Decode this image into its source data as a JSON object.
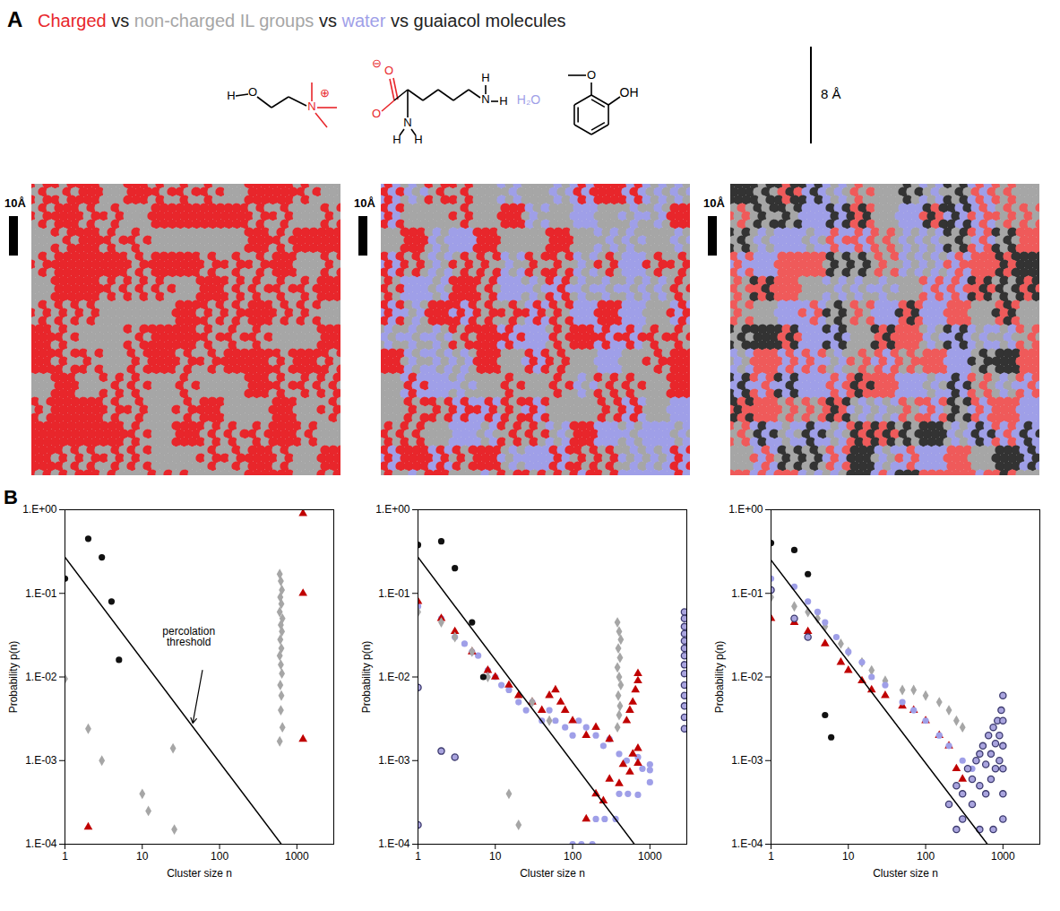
{
  "header": {
    "letter": "A",
    "title_parts": [
      {
        "text": "Charged",
        "color": "#e8262b"
      },
      {
        "text": " vs ",
        "color": "#222222"
      },
      {
        "text": "non-charged IL groups",
        "color": "#a6a6a6"
      },
      {
        "text": " vs ",
        "color": "#222222"
      },
      {
        "text": "water",
        "color": "#9f9fe8"
      },
      {
        "text": " vs guaiacol molecules",
        "color": "#222222"
      }
    ]
  },
  "structures": [
    {
      "labels": [
        "H",
        "O",
        "N",
        "⊕"
      ],
      "colors": [
        "#000000",
        "#000000",
        "#e8262b",
        "#e8262b"
      ]
    },
    {
      "labels": [
        "O",
        "⊖",
        "O",
        "N",
        "H",
        "H",
        "N",
        "H",
        "H"
      ],
      "colors": [
        "#e8262b",
        "#e8262b",
        "#e8262b",
        "#000000",
        "#000000",
        "#000000",
        "#000000",
        "#000000",
        "#000000"
      ]
    },
    {
      "labels": [
        "H₂O"
      ],
      "colors": [
        "#9f9fe8"
      ]
    },
    {
      "labels": [
        "O",
        "OH"
      ],
      "colors": [
        "#000000",
        "#000000"
      ]
    }
  ],
  "scale_label": "8 Å",
  "snapshots": [
    {
      "scale_bar": "10Å",
      "colors": [
        "#e8262b",
        "#a6a6a6"
      ]
    },
    {
      "scale_bar": "10Å",
      "colors": [
        "#e8262b",
        "#a6a6a6",
        "#9f9fe8"
      ]
    },
    {
      "scale_bar": "10Å",
      "colors": [
        "#ef5a5a",
        "#a6a6a6",
        "#9f9fe8",
        "#333333"
      ]
    }
  ],
  "panel_b": {
    "letter": "B"
  },
  "chart_data": [
    {
      "type": "scatter",
      "log": true,
      "grid": false,
      "xlabel": "Cluster size n",
      "ylabel": "Probability p(n)",
      "xlim": [
        1,
        3000
      ],
      "xticks": [
        1,
        10,
        100,
        1000
      ],
      "ylim": [
        0.0001,
        1
      ],
      "yticks": [
        {
          "value": 1,
          "label": "1.E+00"
        },
        {
          "value": 0.1,
          "label": "1.E-01"
        },
        {
          "value": 0.01,
          "label": "1.E-02"
        },
        {
          "value": 0.001,
          "label": "1.E-03"
        },
        {
          "value": 0.0001,
          "label": "1.E-04"
        }
      ],
      "series": [
        {
          "type": "scatter",
          "marker": "diamond",
          "color": "#a6a6a6",
          "x": [
            1,
            2,
            3,
            10,
            12,
            25,
            26,
            600,
            620,
            640,
            610,
            630,
            600,
            650,
            620,
            640,
            610,
            630,
            600,
            620,
            640,
            610,
            630,
            620,
            650,
            600
          ],
          "y": [
            0.0095,
            0.0024,
            0.001,
            0.0004,
            0.00025,
            0.0014,
            0.00015,
            0.17,
            0.14,
            0.11,
            0.09,
            0.075,
            0.06,
            0.05,
            0.042,
            0.035,
            0.028,
            0.022,
            0.018,
            0.014,
            0.011,
            0.008,
            0.006,
            0.004,
            0.0025,
            0.0017
          ]
        },
        {
          "type": "scatter",
          "marker": "triangle",
          "color": "#c00000",
          "x": [
            2,
            1200,
            1200,
            1200
          ],
          "y": [
            0.00016,
            0.9,
            0.1,
            0.0018
          ]
        },
        {
          "type": "scatter",
          "marker": "circle",
          "color": "#111111",
          "x": [
            1,
            2,
            3,
            4,
            5
          ],
          "y": [
            0.15,
            0.45,
            0.27,
            0.08,
            0.016
          ]
        },
        {
          "type": "line",
          "line_style": "solid",
          "color": "#000000",
          "x": [
            1,
            630
          ],
          "y": [
            0.27,
            0.0001
          ]
        }
      ],
      "annotations": [
        {
          "text": "percolation threshold",
          "x": 40,
          "y": 0.03,
          "arrow_from": [
            60,
            0.012
          ],
          "arrow_to": [
            45,
            0.0028
          ]
        }
      ]
    },
    {
      "type": "scatter",
      "log": true,
      "grid": false,
      "xlabel": "Cluster size n",
      "ylabel": "Probability p(n)",
      "xlim": [
        1,
        3000
      ],
      "xticks": [
        1,
        10,
        100,
        1000
      ],
      "ylim": [
        0.0001,
        1
      ],
      "yticks": [
        {
          "value": 1,
          "label": "1.E+00"
        },
        {
          "value": 0.1,
          "label": "1.E-01"
        },
        {
          "value": 0.01,
          "label": "1.E-02"
        },
        {
          "value": 0.001,
          "label": "1.E-03"
        },
        {
          "value": 0.0001,
          "label": "1.E-04"
        }
      ],
      "series": [
        {
          "type": "scatter",
          "marker": "circle",
          "color": "#9f9fe8",
          "x": [
            1,
            2,
            3,
            4,
            5,
            6,
            8,
            10,
            12,
            15,
            20,
            25,
            30,
            40,
            50,
            60,
            80,
            100,
            120,
            150,
            200,
            250,
            300,
            400,
            500,
            700,
            1000,
            100,
            200,
            400,
            800,
            130,
            260,
            520,
            1000,
            180,
            360,
            700,
            1000
          ],
          "y": [
            0.07,
            0.05,
            0.03,
            0.025,
            0.02,
            0.018,
            0.012,
            0.01,
            0.008,
            0.007,
            0.005,
            0.004,
            0.005,
            0.003,
            0.004,
            0.003,
            0.0025,
            0.002,
            0.003,
            0.0025,
            0.002,
            0.0015,
            0.0018,
            0.0012,
            0.001,
            0.0011,
            0.0009,
            0.0001,
            0.0002,
            0.0004,
            0.0008,
            0.0001,
            0.0002,
            0.0004,
            0.00077,
            0.0001,
            0.0002,
            0.00039,
            0.00055
          ]
        },
        {
          "type": "scatter",
          "marker": "triangle",
          "color": "#c00000",
          "x": [
            1,
            2,
            3,
            5,
            8,
            10,
            15,
            20,
            30,
            40,
            50,
            60,
            70,
            80,
            100,
            150,
            200,
            300,
            150,
            250,
            400,
            550,
            700,
            200,
            300,
            450,
            600,
            700,
            500,
            550,
            600,
            650,
            700,
            700
          ],
          "y": [
            0.08,
            0.05,
            0.035,
            0.02,
            0.012,
            0.01,
            0.008,
            0.006,
            0.005,
            0.004,
            0.006,
            0.007,
            0.005,
            0.004,
            0.003,
            0.002,
            0.0025,
            0.0018,
            0.0002,
            0.00033,
            0.00053,
            0.00073,
            0.00093,
            0.0004,
            0.0006,
            0.0009,
            0.0012,
            0.0014,
            0.003,
            0.004,
            0.005,
            0.007,
            0.009,
            0.011
          ]
        },
        {
          "type": "scatter",
          "marker": "diamond",
          "color": "#a6a6a6",
          "x": [
            1,
            2,
            3,
            5,
            8,
            15,
            20,
            30,
            50,
            380,
            400,
            420,
            390,
            410,
            380,
            400,
            420,
            390,
            410,
            400,
            380
          ],
          "y": [
            0.06,
            0.045,
            0.03,
            0.02,
            0.01,
            0.0004,
            0.00017,
            0.005,
            0.003,
            0.045,
            0.035,
            0.028,
            0.022,
            0.017,
            0.013,
            0.01,
            0.008,
            0.006,
            0.0045,
            0.0035,
            0.0025
          ]
        },
        {
          "type": "scatter",
          "marker": "circle-outlined",
          "color": "#3c3a6e",
          "x": [
            1,
            2,
            3,
            1,
            2800,
            2800,
            2800,
            2800,
            2800,
            2800,
            2800,
            2800,
            2800,
            2800,
            2800,
            2800,
            2800,
            2800
          ],
          "y": [
            0.0075,
            0.0013,
            0.0011,
            0.00017,
            0.06,
            0.05,
            0.04,
            0.033,
            0.027,
            0.022,
            0.018,
            0.014,
            0.011,
            0.008,
            0.006,
            0.0045,
            0.0033,
            0.0024
          ]
        },
        {
          "type": "scatter",
          "marker": "circle",
          "color": "#111111",
          "x": [
            1,
            2,
            3,
            5,
            7
          ],
          "y": [
            0.38,
            0.42,
            0.2,
            0.045,
            0.01
          ]
        },
        {
          "type": "line",
          "line_style": "solid",
          "color": "#000000",
          "x": [
            1,
            630
          ],
          "y": [
            0.27,
            0.0001
          ]
        }
      ]
    },
    {
      "type": "scatter",
      "log": true,
      "grid": false,
      "xlabel": "Cluster size n",
      "ylabel": "Probability p(n)",
      "xlim": [
        1,
        3000
      ],
      "xticks": [
        1,
        10,
        100,
        1000
      ],
      "ylim": [
        0.0001,
        1
      ],
      "yticks": [
        {
          "value": 1,
          "label": "1.E+00"
        },
        {
          "value": 0.1,
          "label": "1.E-01"
        },
        {
          "value": 0.01,
          "label": "1.E-02"
        },
        {
          "value": 0.001,
          "label": "1.E-03"
        },
        {
          "value": 0.0001,
          "label": "1.E-04"
        }
      ],
      "series": [
        {
          "type": "scatter",
          "marker": "diamond",
          "color": "#a6a6a6",
          "x": [
            1,
            2,
            3,
            4,
            5,
            8,
            10,
            15,
            20,
            30,
            50,
            70,
            100,
            150,
            200,
            250,
            300
          ],
          "y": [
            0.09,
            0.07,
            0.06,
            0.05,
            0.04,
            0.025,
            0.02,
            0.015,
            0.012,
            0.009,
            0.007,
            0.007,
            0.006,
            0.005,
            0.004,
            0.003,
            0.0025
          ]
        },
        {
          "type": "scatter",
          "marker": "triangle",
          "color": "#c00000",
          "x": [
            1,
            2,
            3,
            5,
            8,
            10,
            15,
            20,
            30,
            50,
            70,
            100,
            150,
            200,
            250,
            300
          ],
          "y": [
            0.05,
            0.045,
            0.035,
            0.025,
            0.015,
            0.012,
            0.009,
            0.007,
            0.006,
            0.0045,
            0.004,
            0.003,
            0.002,
            0.0015,
            0.0008,
            0.0006
          ]
        },
        {
          "type": "scatter",
          "marker": "circle",
          "color": "#9f9fe8",
          "x": [
            1,
            2,
            3,
            4,
            5,
            7,
            10,
            15,
            20,
            30,
            50,
            70,
            100,
            150,
            200,
            300,
            400
          ],
          "y": [
            0.15,
            0.12,
            0.08,
            0.06,
            0.045,
            0.03,
            0.02,
            0.015,
            0.01,
            0.008,
            0.005,
            0.004,
            0.003,
            0.002,
            0.0015,
            0.001,
            0.0008
          ]
        },
        {
          "type": "scatter",
          "marker": "circle-outlined",
          "color": "#3c3a6e",
          "x": [
            1,
            2,
            3,
            200,
            250,
            300,
            300,
            350,
            400,
            400,
            450,
            500,
            500,
            550,
            600,
            600,
            650,
            700,
            700,
            750,
            800,
            800,
            850,
            900,
            900,
            950,
            1000,
            1000,
            1000,
            1000,
            1000,
            1000,
            250,
            500,
            750
          ],
          "y": [
            0.11,
            0.05,
            0.03,
            0.0003,
            0.0005,
            0.0004,
            0.0002,
            0.0008,
            0.0006,
            0.0003,
            0.001,
            0.0012,
            0.0005,
            0.0015,
            0.0009,
            0.0004,
            0.002,
            0.0012,
            0.0006,
            0.0025,
            0.0016,
            0.0008,
            0.003,
            0.002,
            0.001,
            0.004,
            0.006,
            0.003,
            0.0015,
            0.0008,
            0.0004,
            0.0002,
            0.00015,
            0.00015,
            0.00015
          ]
        },
        {
          "type": "scatter",
          "marker": "circle",
          "color": "#111111",
          "x": [
            1,
            2,
            3,
            5,
            6
          ],
          "y": [
            0.4,
            0.33,
            0.17,
            0.0035,
            0.0019
          ]
        },
        {
          "type": "line",
          "line_style": "solid",
          "color": "#000000",
          "x": [
            1,
            630
          ],
          "y": [
            0.25,
            0.0001
          ]
        }
      ]
    }
  ]
}
